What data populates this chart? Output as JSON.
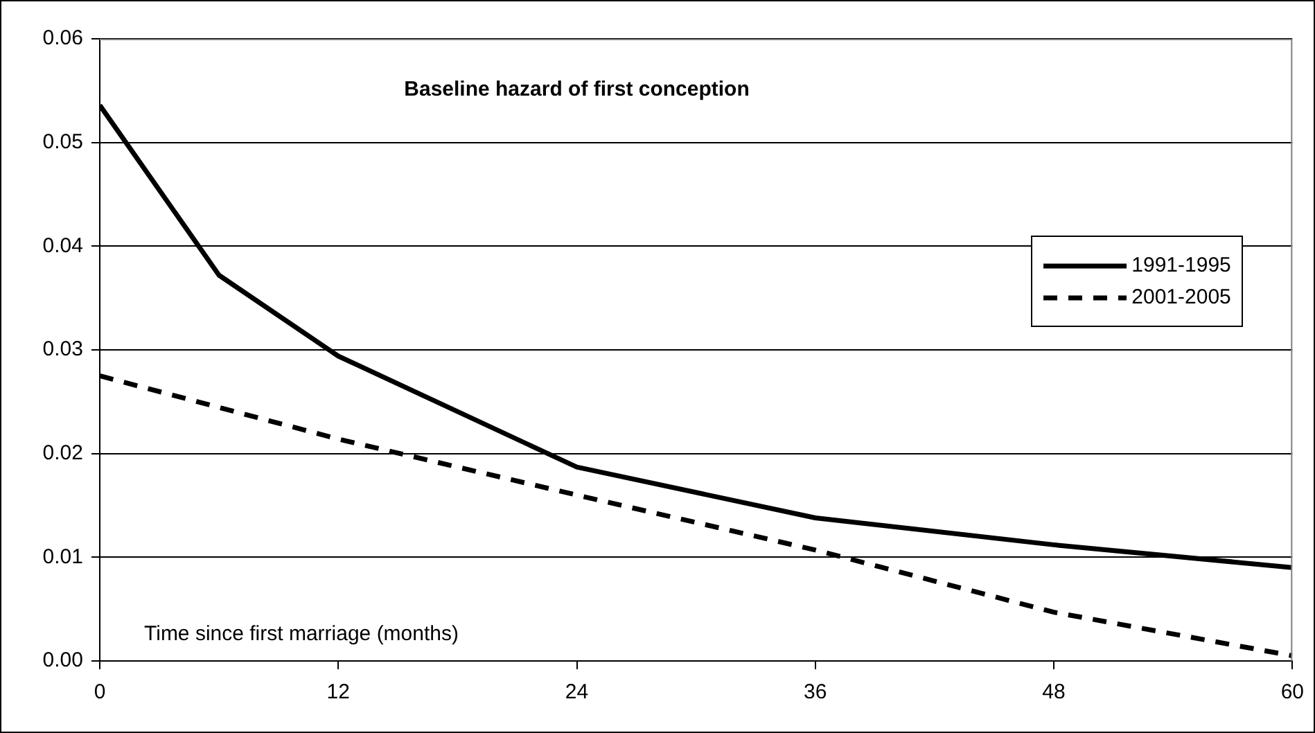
{
  "chart_data": {
    "type": "line",
    "title": "Baseline hazard of first conception",
    "xlabel": "Time since first marriage (months)",
    "xlim": [
      0,
      60
    ],
    "xticks": [
      0,
      12,
      24,
      36,
      48,
      60
    ],
    "ylim": [
      0,
      0.06
    ],
    "yticks": [
      {
        "value": 0,
        "label": "0.00"
      },
      0.01,
      0.02,
      0.03,
      0.04,
      0.05,
      0.06
    ],
    "grid": "y",
    "legend": "right",
    "marker": "none",
    "series": [
      {
        "name": "1991-1995",
        "color": "#000000",
        "line_style": "solid",
        "x": [
          0,
          6,
          12,
          24,
          36,
          48,
          60
        ],
        "values": [
          0.0536,
          0.0372,
          0.0294,
          0.0187,
          0.0138,
          0.0112,
          0.009
        ]
      },
      {
        "name": "2001-2005",
        "color": "#000000",
        "line_style": "dashed",
        "x": [
          0,
          12,
          24,
          36,
          48,
          60
        ],
        "values": [
          0.0275,
          0.0214,
          0.016,
          0.0107,
          0.0047,
          0.0005
        ]
      }
    ]
  }
}
